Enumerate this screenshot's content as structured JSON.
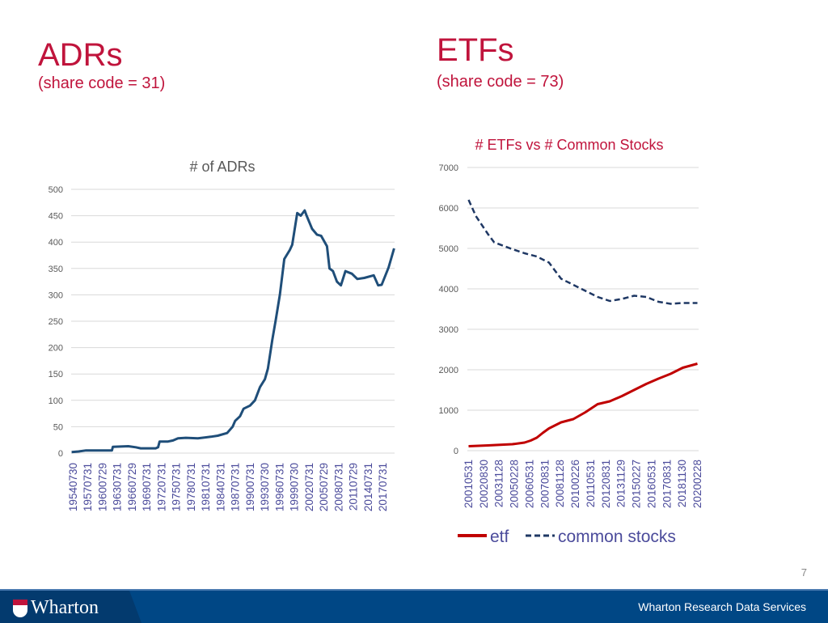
{
  "left_header": {
    "title": "ADRs",
    "subtitle": "(share code = 31)"
  },
  "right_header": {
    "title": "ETFs",
    "subtitle": "(share code = 73)"
  },
  "page_number": "7",
  "footer": {
    "logo_text": "Wharton",
    "org": "Wharton Research Data Services"
  },
  "colors": {
    "title": "#c0143c",
    "footer": "#004785",
    "adr_line": "#1f4e79",
    "etf_line": "#c00000",
    "common_line": "#1f3864"
  },
  "chart_data": [
    {
      "type": "line",
      "title": "# of ADRs",
      "ylim": [
        0,
        500
      ],
      "yticks": [
        0,
        50,
        100,
        150,
        200,
        250,
        300,
        350,
        400,
        450,
        500
      ],
      "grid": true,
      "xlim": [
        1954.5,
        2019.6
      ],
      "xtick_labels": [
        "19540730",
        "19570731",
        "19600729",
        "19630731",
        "19660729",
        "19690731",
        "19720731",
        "19750731",
        "19780731",
        "19810731",
        "19840731",
        "19870731",
        "19900731",
        "19930730",
        "19960731",
        "19990730",
        "20020731",
        "20050729",
        "20080731",
        "20110729",
        "20140731",
        "20170731"
      ],
      "series": [
        {
          "x": [
            1954.6,
            1956,
            1957.5,
            1962.7,
            1962.9,
            1966,
            1967.5,
            1968.5,
            1971.5,
            1972,
            1972.3,
            1974,
            1975,
            1976,
            1977.6,
            1980,
            1982.6,
            1984,
            1985.9,
            1987,
            1987.5,
            1988.5,
            1989.2,
            1990.5,
            1991.5,
            1992.5,
            1993.5,
            1994.1,
            1995,
            1995.7,
            1996.5,
            1997.4,
            1998.5,
            1999,
            2000,
            2000.7,
            2001.5,
            2001.9,
            2003,
            2004,
            2004.8,
            2006,
            2006.5,
            2007.2,
            2008,
            2008.8,
            2009.7,
            2011,
            2012.1,
            2013.5,
            2015.4,
            2016.3,
            2017,
            2018.4,
            2019.5
          ],
          "values": [
            2,
            3,
            5,
            5,
            12,
            13,
            11,
            9,
            9,
            11,
            22,
            22,
            24,
            28,
            29,
            28,
            31,
            33,
            38,
            50,
            61,
            70,
            84,
            90,
            100,
            125,
            140,
            160,
            215,
            253,
            300,
            368,
            385,
            395,
            455,
            450,
            460,
            450,
            425,
            414,
            412,
            392,
            350,
            345,
            325,
            318,
            345,
            340,
            330,
            332,
            337,
            318,
            319,
            352,
            388
          ]
        }
      ]
    },
    {
      "type": "line",
      "title": "# ETFs vs # Common Stocks",
      "ylim": [
        0,
        7000
      ],
      "yticks": [
        0,
        1000,
        2000,
        3000,
        4000,
        5000,
        6000,
        7000
      ],
      "grid": true,
      "legend": "bottom",
      "xlim": [
        2001.3,
        2020.3
      ],
      "xtick_labels": [
        "20010531",
        "20020830",
        "20031128",
        "20050228",
        "20060531",
        "20070831",
        "20081128",
        "20100226",
        "20110531",
        "20120831",
        "20131129",
        "20150227",
        "20160531",
        "20170831",
        "20181130",
        "20200228"
      ],
      "series": [
        {
          "name": "etf",
          "style": "solid",
          "x": [
            2001.4,
            2003,
            2005,
            2006,
            2006.5,
            2007,
            2007.5,
            2008,
            2009,
            2010,
            2011,
            2012,
            2013,
            2014,
            2015,
            2016,
            2017,
            2018,
            2019,
            2020.2
          ],
          "values": [
            110,
            130,
            160,
            200,
            250,
            320,
            440,
            550,
            700,
            780,
            950,
            1150,
            1220,
            1350,
            1500,
            1650,
            1780,
            1900,
            2050,
            2150
          ]
        },
        {
          "name": "common stocks",
          "style": "dashed",
          "x": [
            2001.4,
            2002,
            2003,
            2003.5,
            2005,
            2006,
            2007,
            2008,
            2009,
            2010,
            2011,
            2012,
            2013,
            2014,
            2015,
            2016,
            2017,
            2018,
            2019,
            2020.2
          ],
          "values": [
            6200,
            5800,
            5350,
            5150,
            4980,
            4880,
            4800,
            4650,
            4250,
            4100,
            3950,
            3800,
            3700,
            3750,
            3830,
            3800,
            3680,
            3630,
            3650,
            3650
          ]
        }
      ]
    }
  ]
}
